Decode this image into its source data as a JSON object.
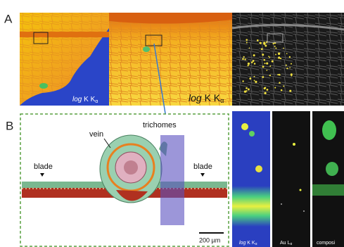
{
  "panel_a": {
    "label": "A",
    "images": [
      {
        "caption": {
          "italic": "log",
          "text": " K K",
          "sub": "α"
        }
      },
      {
        "caption": {
          "italic": "log",
          "text": " K K",
          "sub": "α"
        }
      }
    ]
  },
  "panel_b": {
    "label": "B",
    "annotations": {
      "vein": "vein",
      "trichomes": "trichomes",
      "blade_left": "blade",
      "blade_right": "blade"
    },
    "scale_bar": "200 µm",
    "insets": [
      {
        "caption": {
          "italic": "log",
          "text": " K K",
          "sub": "α"
        }
      },
      {
        "caption": {
          "text": "Au L",
          "sub": "α"
        }
      },
      {
        "caption": {
          "text": "composi"
        }
      }
    ]
  }
}
